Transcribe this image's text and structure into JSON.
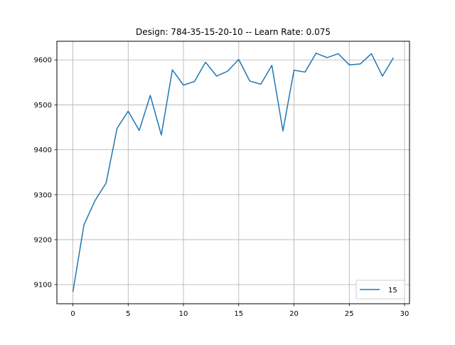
{
  "chart_data": {
    "type": "line",
    "title": "Design: 784-35-15-20-10 -- Learn Rate: 0.075",
    "xlabel": "",
    "ylabel": "",
    "x": [
      0,
      1,
      2,
      3,
      4,
      5,
      6,
      7,
      8,
      9,
      10,
      11,
      12,
      13,
      14,
      15,
      16,
      17,
      18,
      19,
      20,
      21,
      22,
      23,
      24,
      25,
      26,
      27,
      28,
      29
    ],
    "series": [
      {
        "name": "15",
        "color": "#1f77b4",
        "values": [
          9084,
          9233,
          9287,
          9326,
          9448,
          9486,
          9443,
          9521,
          9433,
          9578,
          9544,
          9552,
          9595,
          9564,
          9575,
          9601,
          9553,
          9546,
          9588,
          9442,
          9577,
          9573,
          9615,
          9605,
          9614,
          9589,
          9591,
          9614,
          9564,
          9605
        ]
      }
    ],
    "xlim": [
      -1.45,
      30.45
    ],
    "ylim": [
      9057.45,
      9641.55
    ],
    "xticks": [
      0,
      5,
      10,
      15,
      20,
      25,
      30
    ],
    "yticks": [
      9100,
      9200,
      9300,
      9400,
      9500,
      9600
    ],
    "grid": true,
    "legend_position": "lower right"
  }
}
